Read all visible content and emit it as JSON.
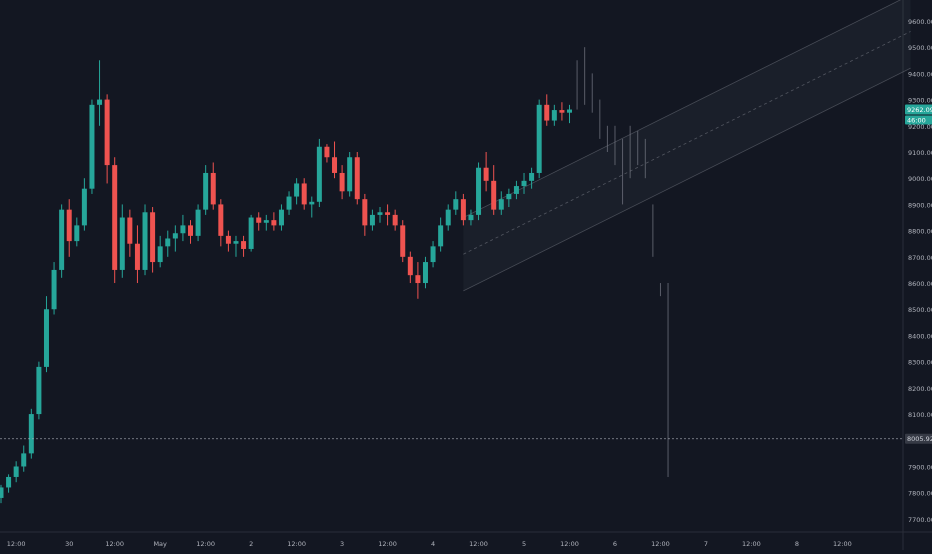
{
  "chart_data": {
    "type": "candlestick",
    "ylim": [
      7650,
      9680
    ],
    "y_ticks": [
      {
        "label": "9600.00",
        "value": 9600
      },
      {
        "label": "9500.00",
        "value": 9500
      },
      {
        "label": "9400.00",
        "value": 9400
      },
      {
        "label": "9300.00",
        "value": 9300
      },
      {
        "label": "9200.00",
        "value": 9200
      },
      {
        "label": "9100.00",
        "value": 9100
      },
      {
        "label": "9000.00",
        "value": 9000
      },
      {
        "label": "8900.00",
        "value": 8900
      },
      {
        "label": "8800.00",
        "value": 8800
      },
      {
        "label": "8700.00",
        "value": 8700
      },
      {
        "label": "8600.00",
        "value": 8600
      },
      {
        "label": "8500.00",
        "value": 8500
      },
      {
        "label": "8400.00",
        "value": 8400
      },
      {
        "label": "8300.00",
        "value": 8300
      },
      {
        "label": "8200.00",
        "value": 8200
      },
      {
        "label": "8100.00",
        "value": 8100
      },
      {
        "label": "7900.00",
        "value": 7900
      },
      {
        "label": "7800.00",
        "value": 7800
      },
      {
        "label": "7700.00",
        "value": 7700
      }
    ],
    "x_ticks": [
      {
        "label": "12:00",
        "index": 2
      },
      {
        "label": "30",
        "index": 9
      },
      {
        "label": "12:00",
        "index": 15
      },
      {
        "label": "May",
        "index": 21
      },
      {
        "label": "12:00",
        "index": 27
      },
      {
        "label": "2",
        "index": 33
      },
      {
        "label": "12:00",
        "index": 39
      },
      {
        "label": "3",
        "index": 45
      },
      {
        "label": "12:00",
        "index": 51
      },
      {
        "label": "4",
        "index": 57
      },
      {
        "label": "12:00",
        "index": 63
      },
      {
        "label": "5",
        "index": 69
      },
      {
        "label": "12:00",
        "index": 75
      },
      {
        "label": "6",
        "index": 81
      },
      {
        "label": "12:00",
        "index": 87
      },
      {
        "label": "7",
        "index": 93
      },
      {
        "label": "12:00",
        "index": 99
      },
      {
        "label": "8",
        "index": 105
      },
      {
        "label": "12:00",
        "index": 111
      }
    ],
    "current_price_label": "9262.09",
    "countdown_label": "46:00",
    "level_line_label": "8005.92",
    "level_line_value": 8005.92,
    "colors": {
      "up": "#26a69a",
      "down": "#ef5350",
      "bg": "#131722",
      "grid": "#2a2e39",
      "text": "#b2b5be",
      "ghost": "#787b86",
      "channel": "#787b86"
    },
    "candles": [
      [
        7780,
        7830,
        7760,
        7820
      ],
      [
        7820,
        7870,
        7800,
        7860
      ],
      [
        7860,
        7920,
        7840,
        7900
      ],
      [
        7900,
        7980,
        7880,
        7950
      ],
      [
        7950,
        8120,
        7930,
        8100
      ],
      [
        8100,
        8300,
        8080,
        8280
      ],
      [
        8280,
        8550,
        8260,
        8500
      ],
      [
        8500,
        8680,
        8480,
        8650
      ],
      [
        8650,
        8900,
        8620,
        8880
      ],
      [
        8880,
        8920,
        8700,
        8760
      ],
      [
        8760,
        8850,
        8740,
        8820
      ],
      [
        8820,
        9000,
        8800,
        8960
      ],
      [
        8960,
        9300,
        8940,
        9280
      ],
      [
        9280,
        9450,
        9200,
        9300
      ],
      [
        9300,
        9320,
        8980,
        9050
      ],
      [
        9050,
        9080,
        8600,
        8650
      ],
      [
        8650,
        8900,
        8620,
        8850
      ],
      [
        8850,
        8880,
        8700,
        8750
      ],
      [
        8750,
        8820,
        8600,
        8650
      ],
      [
        8650,
        8900,
        8630,
        8870
      ],
      [
        8870,
        8890,
        8640,
        8680
      ],
      [
        8680,
        8780,
        8660,
        8740
      ],
      [
        8740,
        8800,
        8700,
        8770
      ],
      [
        8770,
        8820,
        8720,
        8790
      ],
      [
        8790,
        8860,
        8760,
        8820
      ],
      [
        8820,
        8840,
        8750,
        8780
      ],
      [
        8780,
        8900,
        8760,
        8880
      ],
      [
        8880,
        9050,
        8860,
        9020
      ],
      [
        9020,
        9060,
        8880,
        8900
      ],
      [
        8900,
        8920,
        8740,
        8780
      ],
      [
        8780,
        8800,
        8720,
        8750
      ],
      [
        8750,
        8780,
        8700,
        8760
      ],
      [
        8760,
        8780,
        8700,
        8730
      ],
      [
        8730,
        8860,
        8720,
        8850
      ],
      [
        8850,
        8870,
        8800,
        8830
      ],
      [
        8830,
        8860,
        8800,
        8840
      ],
      [
        8840,
        8870,
        8800,
        8820
      ],
      [
        8820,
        8900,
        8800,
        8880
      ],
      [
        8880,
        8950,
        8860,
        8930
      ],
      [
        8930,
        9000,
        8900,
        8980
      ],
      [
        8980,
        9000,
        8880,
        8900
      ],
      [
        8900,
        8930,
        8850,
        8910
      ],
      [
        8910,
        9150,
        8890,
        9120
      ],
      [
        9120,
        9130,
        9060,
        9080
      ],
      [
        9080,
        9140,
        9000,
        9020
      ],
      [
        9020,
        9050,
        8920,
        8950
      ],
      [
        8950,
        9100,
        8930,
        9080
      ],
      [
        9080,
        9100,
        8900,
        8920
      ],
      [
        8920,
        8940,
        8780,
        8820
      ],
      [
        8820,
        8880,
        8800,
        8860
      ],
      [
        8860,
        8890,
        8830,
        8870
      ],
      [
        8870,
        8900,
        8820,
        8860
      ],
      [
        8860,
        8880,
        8800,
        8820
      ],
      [
        8820,
        8840,
        8680,
        8700
      ],
      [
        8700,
        8720,
        8600,
        8630
      ],
      [
        8630,
        8680,
        8540,
        8600
      ],
      [
        8600,
        8700,
        8580,
        8680
      ],
      [
        8680,
        8760,
        8660,
        8740
      ],
      [
        8740,
        8850,
        8720,
        8820
      ],
      [
        8820,
        8900,
        8800,
        8880
      ],
      [
        8880,
        8950,
        8860,
        8920
      ],
      [
        8920,
        8940,
        8820,
        8840
      ],
      [
        8840,
        8880,
        8820,
        8860
      ],
      [
        8860,
        9060,
        8840,
        9040
      ],
      [
        9040,
        9100,
        8950,
        8990
      ],
      [
        8990,
        9050,
        8860,
        8880
      ],
      [
        8880,
        8950,
        8860,
        8920
      ],
      [
        8920,
        8960,
        8890,
        8940
      ],
      [
        8940,
        8990,
        8920,
        8970
      ],
      [
        8970,
        9020,
        8940,
        8990
      ],
      [
        8990,
        9040,
        8960,
        9020
      ],
      [
        9020,
        9300,
        9000,
        9280
      ],
      [
        9280,
        9320,
        9200,
        9220
      ],
      [
        9220,
        9280,
        9200,
        9260
      ],
      [
        9260,
        9290,
        9220,
        9250
      ],
      [
        9250,
        9280,
        9210,
        9262.09
      ]
    ],
    "ghost_candles": [
      [
        9262,
        9450
      ],
      [
        9280,
        9500
      ],
      [
        9250,
        9400
      ],
      [
        9150,
        9300
      ],
      [
        9100,
        9200
      ],
      [
        9050,
        9200
      ],
      [
        8900,
        9150
      ],
      [
        9000,
        9200
      ],
      [
        9050,
        9180
      ],
      [
        9000,
        9150
      ],
      [
        8700,
        8900
      ],
      [
        8550,
        8600
      ],
      [
        7860,
        8600
      ]
    ],
    "channel": {
      "start_index": 61,
      "end_index": 120,
      "lower_start": 8570,
      "lower_end": 9420,
      "upper_start": 8850,
      "upper_end": 9700
    }
  }
}
